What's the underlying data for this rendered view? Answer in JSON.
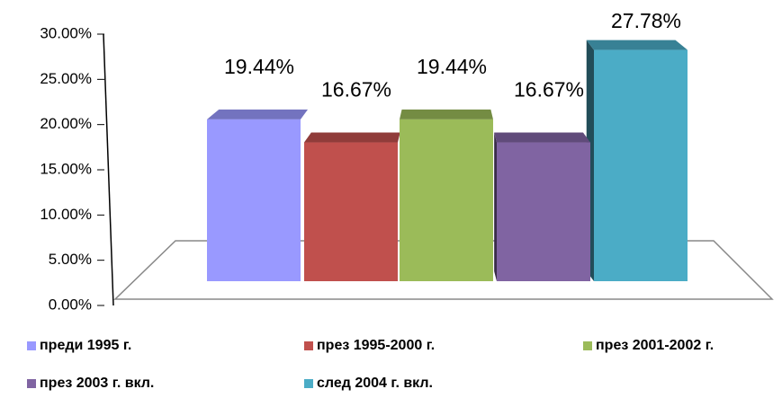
{
  "chart_data": {
    "type": "bar",
    "categories": [
      "преди 1995 г.",
      "през 1995-2000 г.",
      "през 2001-2002 г.",
      "през 2003 г. вкл.",
      "след 2004 г. вкл."
    ],
    "values": [
      19.44,
      16.67,
      19.44,
      16.67,
      27.78
    ],
    "value_labels": [
      "19.44%",
      "16.67%",
      "19.44%",
      "16.67%",
      "27.78%"
    ],
    "colors": [
      "#9999ff",
      "#c0504d",
      "#9bbb59",
      "#8064a2",
      "#4bacc6"
    ],
    "ylim": [
      0,
      30
    ],
    "yticks": [
      {
        "value": 0,
        "label": "0.00%"
      },
      {
        "value": 5,
        "label": "5.00%"
      },
      {
        "value": 10,
        "label": "10.00%"
      },
      {
        "value": 15,
        "label": "15.00%"
      },
      {
        "value": 20,
        "label": "20.00%"
      },
      {
        "value": 25,
        "label": "25.00%"
      },
      {
        "value": 30,
        "label": "30.00%"
      }
    ],
    "legend": "bottom"
  }
}
